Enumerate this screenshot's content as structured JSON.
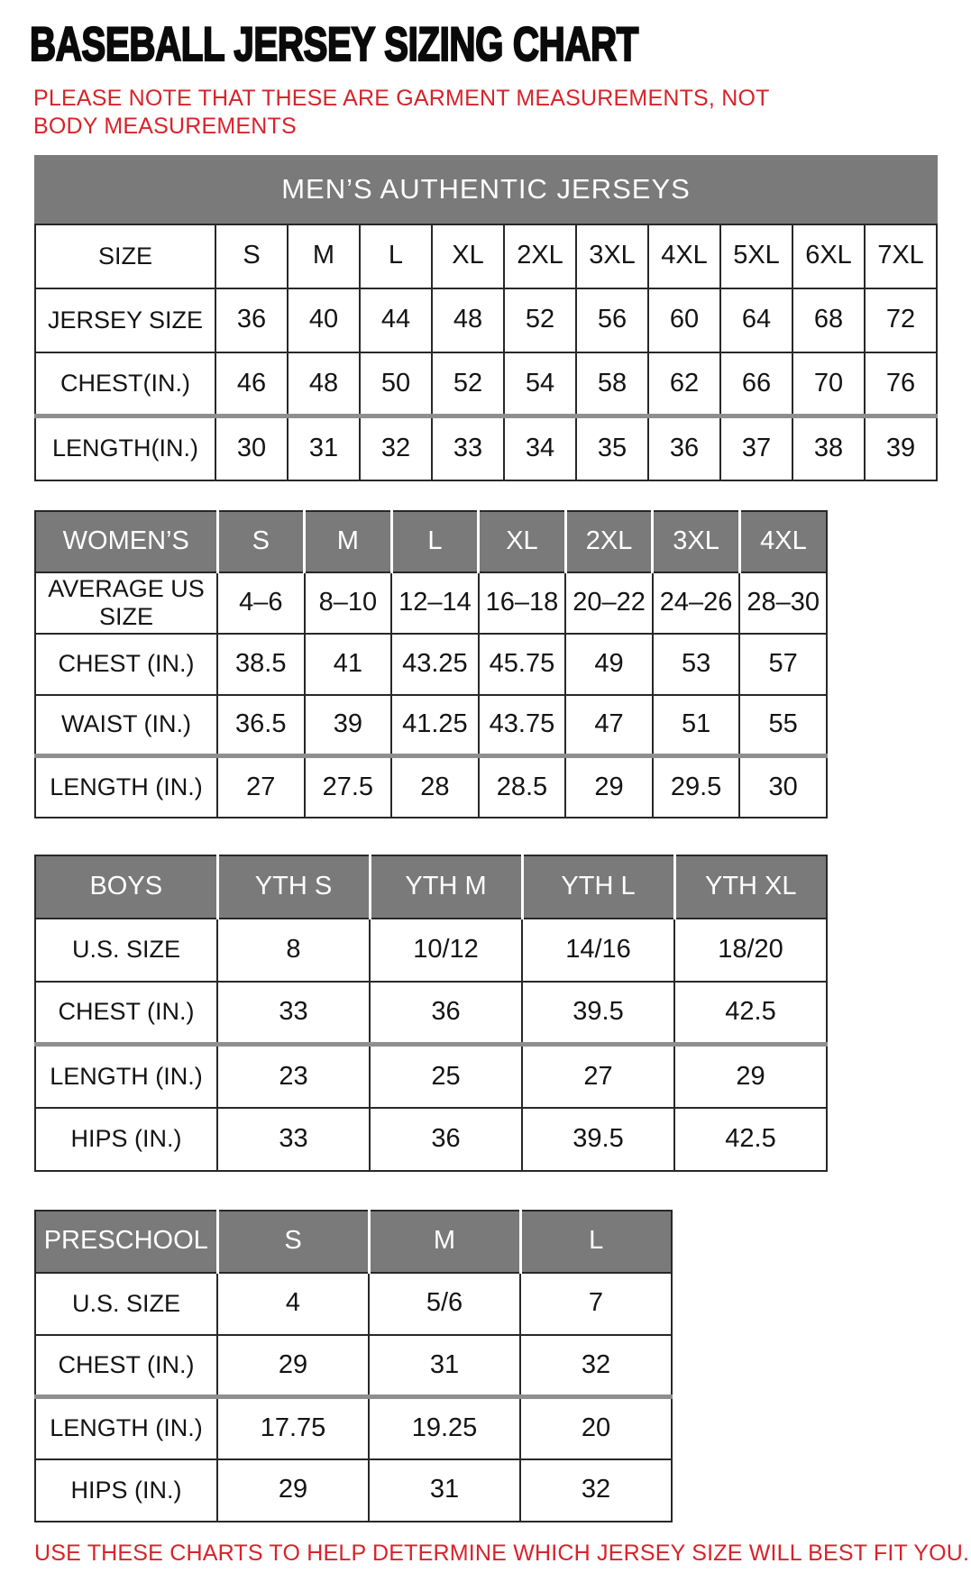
{
  "title": "BASEBALL JERSEY SIZING CHART",
  "note": "PLEASE NOTE THAT THESE ARE GARMENT MEASUREMENTS, NOT BODY MEASUREMENTS",
  "footer": "USE THESE CHARTS TO HELP DETERMINE WHICH JERSEY SIZE WILL BEST FIT YOU.",
  "colors": {
    "accent_red": "#d8232a",
    "header_gray": "#7a7a7a",
    "border_dark": "#282828",
    "thick_separator_gray": "#8f8f8f",
    "text_black": "#141414",
    "header_text_white": "#ffffff"
  },
  "chart_data": [
    {
      "type": "table",
      "name": "mens",
      "title": "MEN’S AUTHENTIC JERSEYS",
      "header": [
        "SIZE",
        "S",
        "M",
        "L",
        "XL",
        "2XL",
        "3XL",
        "4XL",
        "5XL",
        "6XL",
        "7XL"
      ],
      "rows": [
        [
          "JERSEY SIZE",
          "36",
          "40",
          "44",
          "48",
          "52",
          "56",
          "60",
          "64",
          "68",
          "72"
        ],
        [
          "CHEST(IN.)",
          "46",
          "48",
          "50",
          "52",
          "54",
          "58",
          "62",
          "66",
          "70",
          "76"
        ],
        [
          "LENGTH(IN.)",
          "30",
          "31",
          "32",
          "33",
          "34",
          "35",
          "36",
          "37",
          "38",
          "39"
        ]
      ],
      "thick_border_above_row": 2,
      "legend_position": "none",
      "grid": true
    },
    {
      "type": "table",
      "name": "womens",
      "header": [
        "WOMEN’S",
        "S",
        "M",
        "L",
        "XL",
        "2XL",
        "3XL",
        "4XL"
      ],
      "rows": [
        [
          "AVERAGE US SIZE",
          "4–6",
          "8–10",
          "12–14",
          "16–18",
          "20–22",
          "24–26",
          "28–30"
        ],
        [
          "CHEST (IN.)",
          "38.5",
          "41",
          "43.25",
          "45.75",
          "49",
          "53",
          "57"
        ],
        [
          "WAIST (IN.)",
          "36.5",
          "39",
          "41.25",
          "43.75",
          "47",
          "51",
          "55"
        ],
        [
          "LENGTH (IN.)",
          "27",
          "27.5",
          "28",
          "28.5",
          "29",
          "29.5",
          "30"
        ]
      ],
      "thick_border_above_row": 3,
      "legend_position": "none",
      "grid": true
    },
    {
      "type": "table",
      "name": "boys",
      "header": [
        "BOYS",
        "YTH S",
        "YTH M",
        "YTH L",
        "YTH XL"
      ],
      "rows": [
        [
          "U.S. SIZE",
          "8",
          "10/12",
          "14/16",
          "18/20"
        ],
        [
          "CHEST (IN.)",
          "33",
          "36",
          "39.5",
          "42.5"
        ],
        [
          "LENGTH (IN.)",
          "23",
          "25",
          "27",
          "29"
        ],
        [
          "HIPS (IN.)",
          "33",
          "36",
          "39.5",
          "42.5"
        ]
      ],
      "thick_border_above_row": 2,
      "legend_position": "none",
      "grid": true
    },
    {
      "type": "table",
      "name": "preschool",
      "header": [
        "PRESCHOOL",
        "S",
        "M",
        "L"
      ],
      "rows": [
        [
          "U.S. SIZE",
          "4",
          "5/6",
          "7"
        ],
        [
          "CHEST (IN.)",
          "29",
          "31",
          "32"
        ],
        [
          "LENGTH (IN.)",
          "17.75",
          "19.25",
          "20"
        ],
        [
          "HIPS (IN.)",
          "29",
          "31",
          "32"
        ]
      ],
      "thick_border_above_row": 2,
      "legend_position": "none",
      "grid": true
    }
  ]
}
